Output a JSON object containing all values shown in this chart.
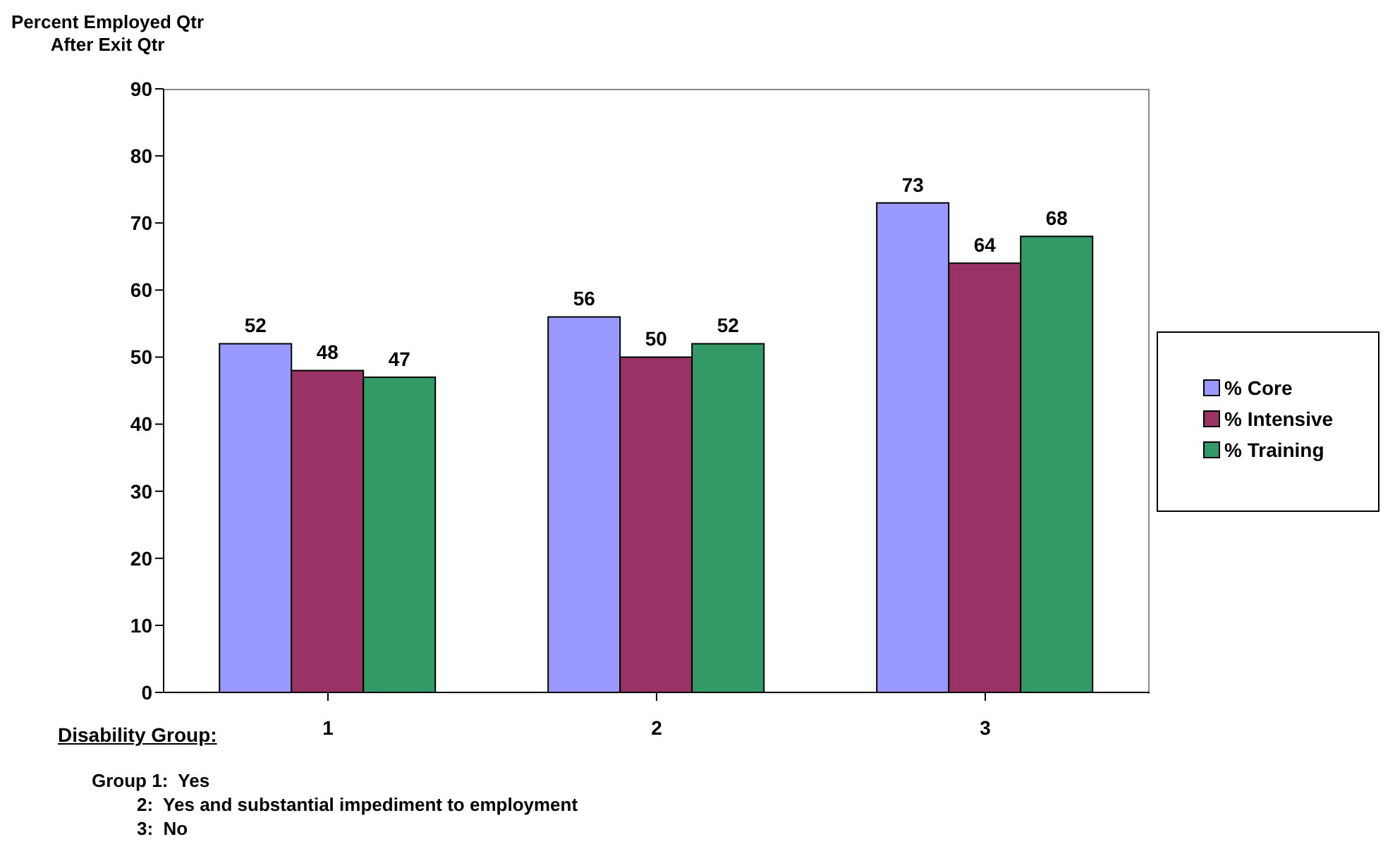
{
  "chart_data": {
    "type": "bar",
    "ylabel": "Percent Employed Qtr\nAfter Exit Qtr",
    "xlabel": "Disability Group:",
    "categories": [
      "1",
      "2",
      "3"
    ],
    "series": [
      {
        "name": "% Core",
        "color": "#9999ff",
        "values": [
          52,
          56,
          73
        ]
      },
      {
        "name": "% Intensive",
        "color": "#993366",
        "values": [
          48,
          50,
          64
        ]
      },
      {
        "name": "% Training",
        "color": "#339966",
        "values": [
          47,
          52,
          68
        ]
      }
    ],
    "ylim": [
      0,
      90
    ],
    "yticks": [
      0,
      10,
      20,
      30,
      40,
      50,
      60,
      70,
      80,
      90
    ],
    "data_labels": true,
    "legend": "right",
    "annotations": [
      "Group 1:  Yes",
      "2:  Yes and substantial impediment to employment",
      "3:  No"
    ]
  }
}
